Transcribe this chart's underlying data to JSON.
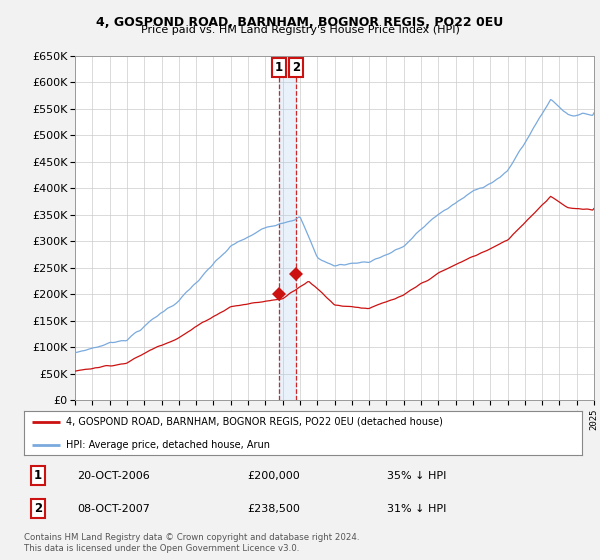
{
  "title": "4, GOSPOND ROAD, BARNHAM, BOGNOR REGIS, PO22 0EU",
  "subtitle": "Price paid vs. HM Land Registry's House Price Index (HPI)",
  "legend_entry1": "4, GOSPOND ROAD, BARNHAM, BOGNOR REGIS, PO22 0EU (detached house)",
  "legend_entry2": "HPI: Average price, detached house, Arun",
  "annotation1_date": "20-OCT-2006",
  "annotation1_price": "£200,000",
  "annotation1_hpi": "35% ↓ HPI",
  "annotation2_date": "08-OCT-2007",
  "annotation2_price": "£238,500",
  "annotation2_hpi": "31% ↓ HPI",
  "footer": "Contains HM Land Registry data © Crown copyright and database right 2024.\nThis data is licensed under the Open Government Licence v3.0.",
  "hpi_color": "#7aaadd",
  "price_color": "#cc1111",
  "annotation_color": "#cc1111",
  "background_color": "#f2f2f2",
  "plot_bg_color": "#ffffff",
  "ylim": [
    0,
    650000
  ],
  "ytick_step": 50000,
  "sale1_x": 2006.8,
  "sale1_y": 200000,
  "sale2_x": 2007.77,
  "sale2_y": 238500,
  "xmin": 1995,
  "xmax": 2025
}
